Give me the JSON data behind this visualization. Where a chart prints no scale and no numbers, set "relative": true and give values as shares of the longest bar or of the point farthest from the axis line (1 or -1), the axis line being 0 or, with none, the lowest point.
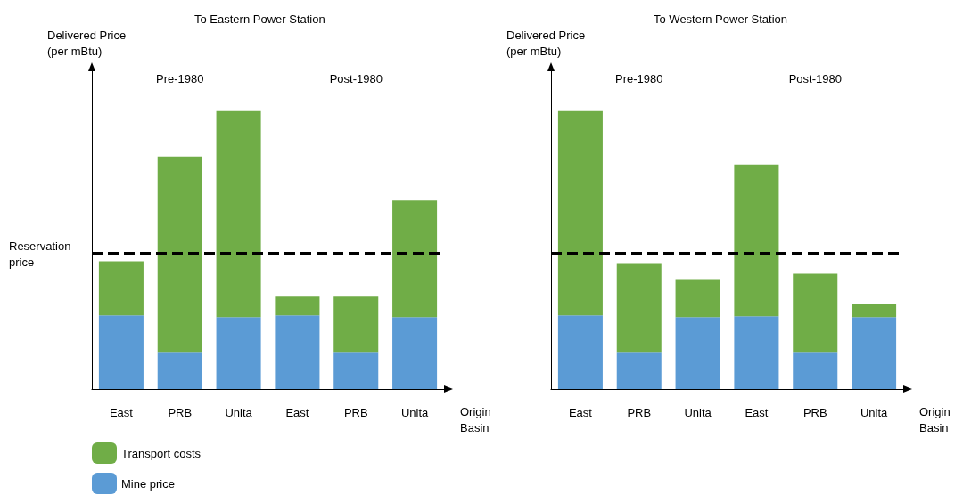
{
  "chart_data": [
    {
      "type": "bar",
      "title": "To Eastern Power Station",
      "ylabel": "Delivered Price (per mBtu)",
      "xlabel": "Origin Basin",
      "relative": true,
      "stacked": true,
      "categories": [
        "East",
        "PRB",
        "Unita",
        "East",
        "PRB",
        "Unita"
      ],
      "series": [
        {
          "name": "Mine price",
          "color": "#5b9bd5",
          "values": [
            0.265,
            0.134,
            0.259,
            0.265,
            0.134,
            0.259
          ]
        },
        {
          "name": "Transport costs",
          "color": "#70ad47",
          "values": [
            0.195,
            0.703,
            0.741,
            0.067,
            0.198,
            0.419
          ]
        }
      ],
      "ref_lines": [
        {
          "axis": "y",
          "value": 0.486,
          "label": "Reservation price",
          "line_style": "dashed",
          "color": "#000000"
        }
      ],
      "annotations": [
        "Pre-1980",
        "Post-1980"
      ],
      "legend": "bottom left",
      "grid": false
    },
    {
      "type": "bar",
      "title": "To Western Power Station",
      "ylabel": "Delivered Price (per mBtu)",
      "xlabel": "Origin Basin",
      "relative": true,
      "stacked": true,
      "categories": [
        "East",
        "PRB",
        "Unita",
        "East",
        "PRB",
        "Unita"
      ],
      "series": [
        {
          "color": "#5b9bd5",
          "values": [
            0.265,
            0.134,
            0.259,
            0.262,
            0.134,
            0.259
          ]
        },
        {
          "color": "#70ad47",
          "values": [
            0.735,
            0.319,
            0.137,
            0.546,
            0.281,
            0.048
          ]
        }
      ],
      "ref_lines": [
        {
          "axis": "y",
          "value": 0.486,
          "label": null,
          "line_style": "dashed",
          "color": "#000000"
        }
      ],
      "annotations": [
        "Pre-1980",
        "Post-1980"
      ],
      "legend": false,
      "grid": false
    }
  ]
}
